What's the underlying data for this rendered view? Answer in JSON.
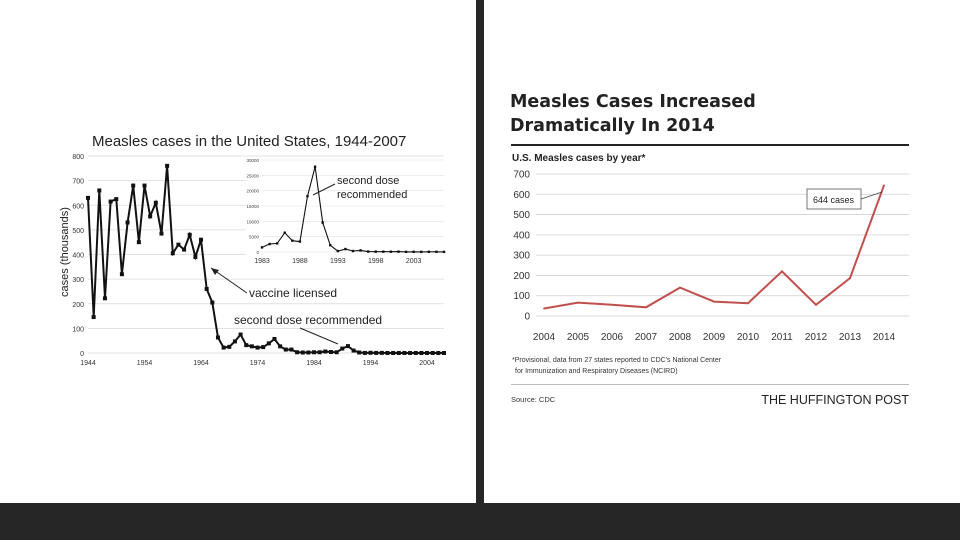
{
  "chart_data": [
    {
      "type": "line",
      "title": "Measles cases in the United States, 1944-2007",
      "xlabel": "",
      "ylabel": "cases (thousands)",
      "ylim": [
        0,
        800
      ],
      "xlim": [
        1944,
        2007
      ],
      "y_ticks": [
        "0",
        "100",
        "200",
        "300",
        "400",
        "500",
        "600",
        "700",
        "800"
      ],
      "x_ticks": [
        "1944",
        "1954",
        "1964",
        "1974",
        "1984",
        "1994",
        "2004"
      ],
      "x_tick_values": [
        1944,
        1954,
        1964,
        1974,
        1984,
        1994,
        2004
      ],
      "series": [
        {
          "name": "cases",
          "x": [
            1944,
            1945,
            1946,
            1947,
            1948,
            1949,
            1950,
            1951,
            1952,
            1953,
            1954,
            1955,
            1956,
            1957,
            1958,
            1959,
            1960,
            1961,
            1962,
            1963,
            1964,
            1965,
            1966,
            1967,
            1968,
            1969,
            1970,
            1971,
            1972,
            1973,
            1974,
            1975,
            1976,
            1977,
            1978,
            1979,
            1980,
            1981,
            1982,
            1983,
            1984,
            1985,
            1986,
            1987,
            1988,
            1989,
            1990,
            1991,
            1992,
            1993,
            1994,
            1995,
            1996,
            1997,
            1998,
            1999,
            2000,
            2001,
            2002,
            2003,
            2004,
            2005,
            2006,
            2007
          ],
          "values": [
            630,
            146,
            660,
            222,
            615,
            625,
            320,
            530,
            680,
            450,
            680,
            555,
            610,
            485,
            760,
            405,
            440,
            420,
            480,
            390,
            460,
            260,
            205,
            63,
            22,
            25,
            47,
            75,
            32,
            27,
            22,
            24,
            39,
            57,
            27,
            14,
            14,
            3,
            2,
            2,
            3,
            3,
            6,
            4,
            3,
            18,
            28,
            10,
            2,
            0.3,
            1,
            0.3,
            0.5,
            0.1,
            0.1,
            0.1,
            0.1,
            0.1,
            0.05,
            0.05,
            0.04,
            0.07,
            0.06,
            0.04
          ]
        }
      ],
      "annotations": [
        "vaccine licensed",
        "second dose recommended"
      ],
      "inset": {
        "ylim": [
          0,
          30000
        ],
        "y_ticks": [
          "0",
          "5000",
          "10000",
          "15000",
          "20000",
          "25000",
          "30000"
        ],
        "x_ticks": [
          "1983",
          "1988",
          "1993",
          "1998",
          "2003"
        ],
        "x_tick_values": [
          1983,
          1988,
          1993,
          1998,
          2003
        ],
        "x": [
          1983,
          1984,
          1985,
          1986,
          1987,
          1988,
          1989,
          1990,
          1991,
          1992,
          1993,
          1994,
          1995,
          1996,
          1997,
          1998,
          1999,
          2000,
          2001,
          2002,
          2003,
          2004,
          2005,
          2006,
          2007
        ],
        "values": [
          1500,
          2600,
          2800,
          6300,
          3700,
          3400,
          18200,
          27800,
          9600,
          2200,
          300,
          960,
          310,
          510,
          140,
          100,
          100,
          86,
          116,
          44,
          56,
          37,
          66,
          55,
          43
        ],
        "annotation": "second dose recommended"
      }
    },
    {
      "type": "line",
      "title": "U.S. Measles cases by year*",
      "xlabel": "",
      "ylabel": "",
      "ylim": [
        0,
        700
      ],
      "y_ticks": [
        "0",
        "100",
        "200",
        "300",
        "400",
        "500",
        "600",
        "700"
      ],
      "categories": [
        "2004",
        "2005",
        "2006",
        "2007",
        "2008",
        "2009",
        "2010",
        "2011",
        "2012",
        "2013",
        "2014"
      ],
      "series": [
        {
          "name": "cases",
          "values": [
            37,
            66,
            55,
            43,
            140,
            71,
            63,
            220,
            55,
            187,
            644
          ],
          "color": "#c0504d"
        }
      ],
      "annotations": [
        "644 cases"
      ]
    }
  ],
  "left": {
    "title": "Measles cases in the United States, 1944-2007",
    "ylabel": "cases (thousands)",
    "annot_vaccine": "vaccine licensed",
    "annot_second_dose": "second dose recommended",
    "inset_annot_line1": "second dose",
    "inset_annot_line2": "recommended"
  },
  "right": {
    "headline": "Measles Cases Increased Dramatically In 2014",
    "subtitle": "U.S. Measles cases by year*",
    "callout": "644 cases",
    "footnote_line1": "*Provisional, data from 27 states reported to CDC's National Center",
    "footnote_line2": "for Immunization and Respiratory Diseases (NCIRD)",
    "source": "Source: CDC",
    "brand": "THE HUFFINGTON POST",
    "line_color": "#c0504d"
  }
}
